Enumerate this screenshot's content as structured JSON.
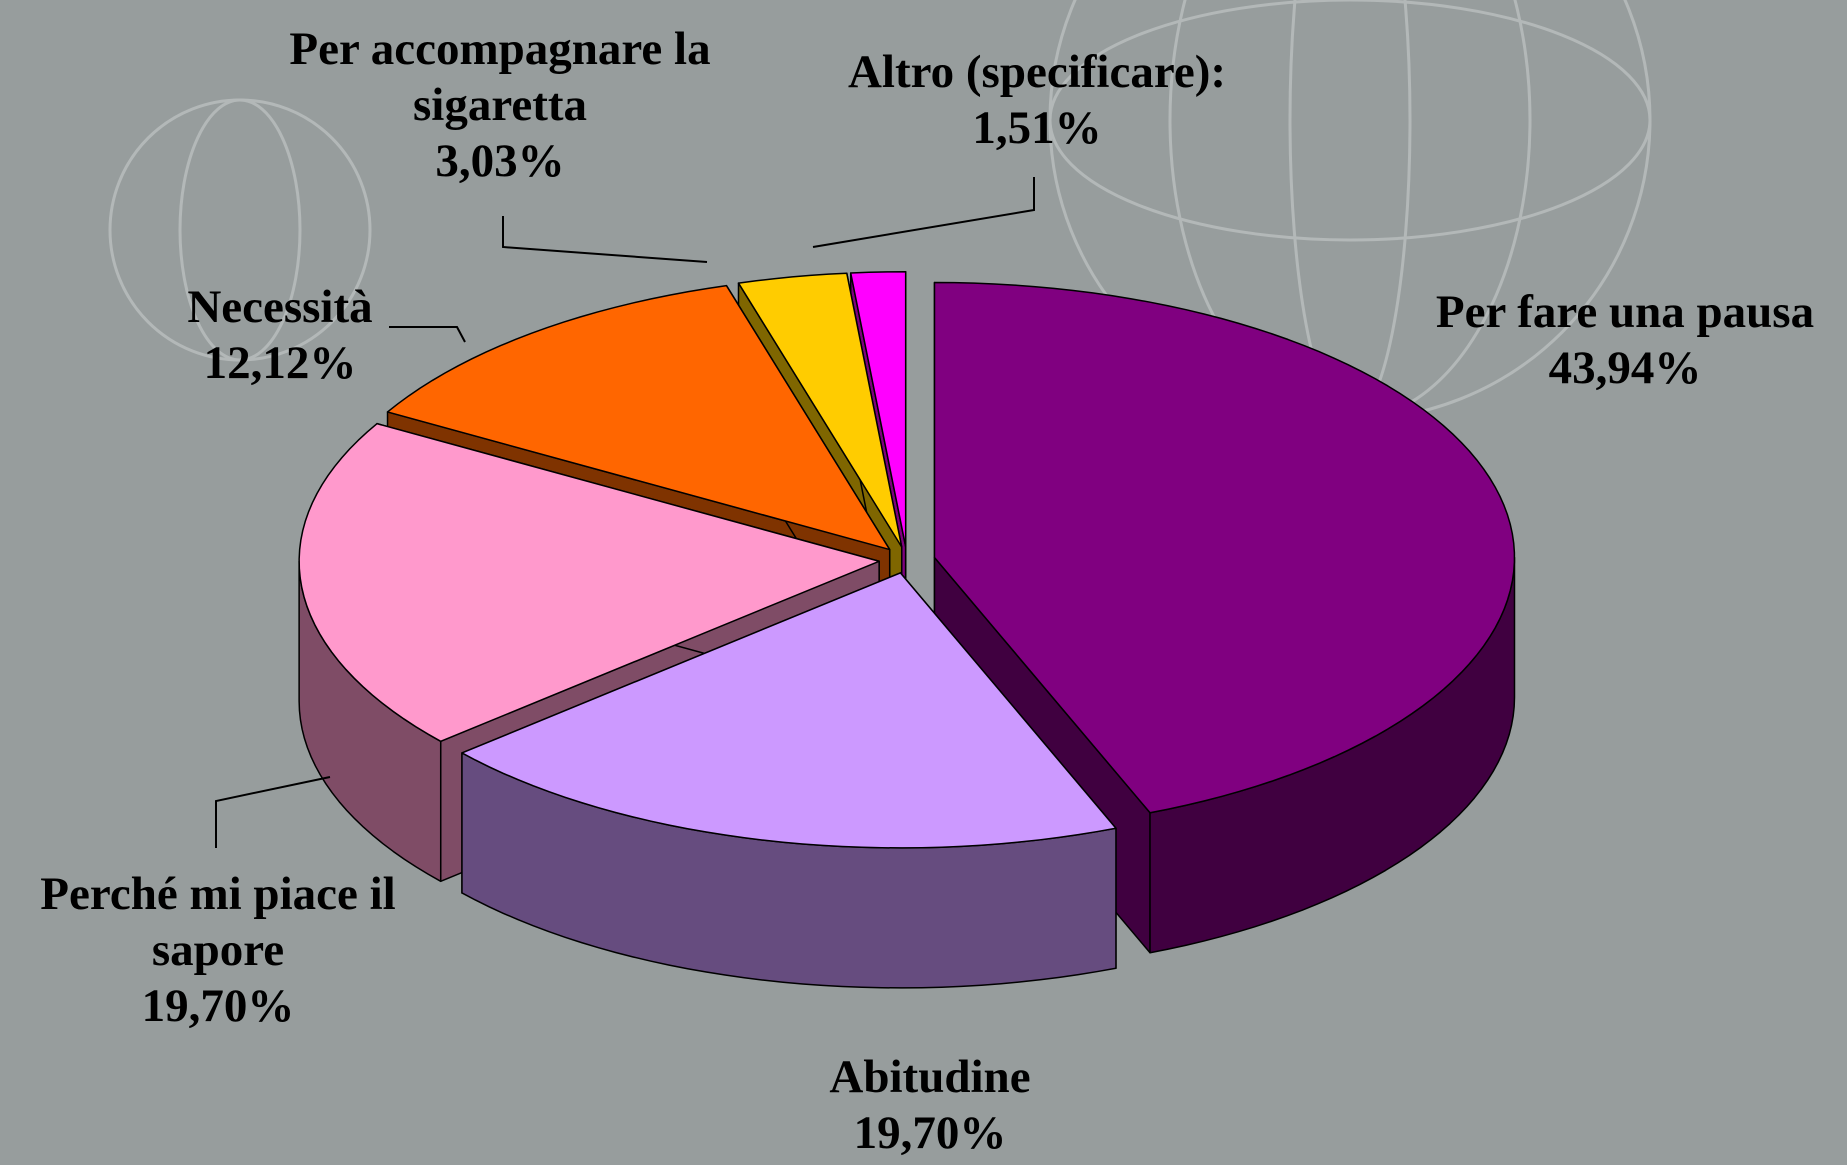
{
  "chart_data": {
    "type": "pie3d",
    "categories": [
      "Per fare una pausa",
      "Abitudine",
      "Perché mi piace il sapore",
      "Necessità",
      "Per accompagnare la sigaretta",
      "Altro (specificare):"
    ],
    "values": [
      43.94,
      19.7,
      19.7,
      12.12,
      3.03,
      1.51
    ],
    "value_labels": [
      "43,94%",
      "19,70%",
      "19,70%",
      "12,12%",
      "3,03%",
      "1,51%"
    ],
    "colors": [
      "#800080",
      "#CC99FF",
      "#FF99CC",
      "#FF6600",
      "#FFCC00",
      "#FF00FF"
    ]
  }
}
